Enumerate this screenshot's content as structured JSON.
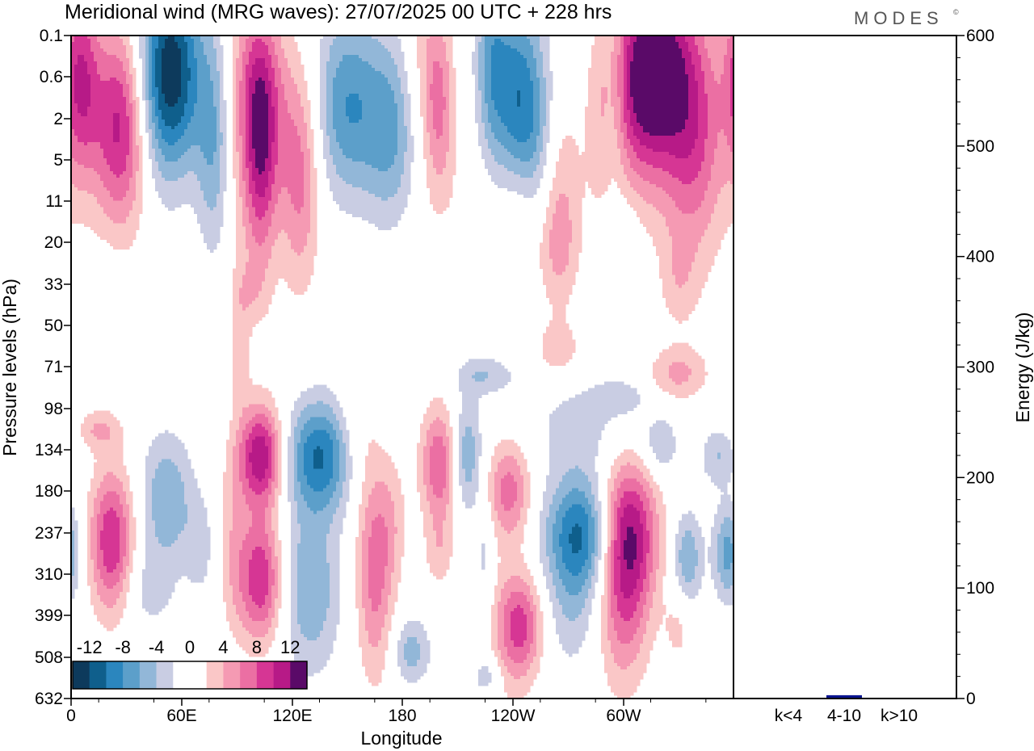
{
  "chart_data": [
    {
      "type": "heatmap",
      "title": "Meridional wind (MRG waves):  27/07/2025  00 UTC  + 228 hrs",
      "brand": "MODES",
      "brand_mark": "©",
      "xlabel": "Longitude",
      "ylabel": "Pressure levels (hPa)",
      "x_ticks": [
        "0",
        "60E",
        "120E",
        "180",
        "120W",
        "60W"
      ],
      "y_ticks": [
        "0.1",
        "0.6",
        "2",
        "5",
        "11",
        "20",
        "33",
        "50",
        "71",
        "98",
        "134",
        "180",
        "237",
        "310",
        "399",
        "508",
        "632"
      ],
      "colorbar": {
        "labels": [
          "-12",
          "-8",
          "-4",
          "0",
          "4",
          "8",
          "12"
        ],
        "levels": [
          -14,
          -12,
          -10,
          -8,
          -6,
          -4,
          -2,
          0,
          2,
          4,
          6,
          8,
          10,
          12,
          14
        ],
        "colors": [
          "#0d3a5c",
          "#0f5f8c",
          "#2b86be",
          "#5c9fca",
          "#92b7d8",
          "#c9cde3",
          "#ffffff",
          "#ffffff",
          "#fac7c7",
          "#f59ab3",
          "#eb6fa3",
          "#d63694",
          "#b71a87",
          "#5a0a68"
        ]
      },
      "blobs": [
        {
          "lon": 5,
          "lev": 0.6,
          "rx": 10,
          "ry": 16,
          "v": 9
        },
        {
          "lon": 28,
          "lev": 2.3,
          "rx": 16,
          "ry": 16,
          "v": 12
        },
        {
          "lon": 55,
          "lev": 0.5,
          "rx": 16,
          "ry": 18,
          "v": -13
        },
        {
          "lon": 40,
          "lev": 1.2,
          "rx": 14,
          "ry": 20,
          "v": -4
        },
        {
          "lon": 78,
          "lev": 3.8,
          "rx": 10,
          "ry": 24,
          "v": -7
        },
        {
          "lon": 103,
          "lev": 3.8,
          "rx": 8,
          "ry": 22,
          "v": 7
        },
        {
          "lon": 98,
          "lev": 0.8,
          "rx": 14,
          "ry": 16,
          "v": 6
        },
        {
          "lon": 125,
          "lev": 6.5,
          "rx": 10,
          "ry": 16,
          "v": 6
        },
        {
          "lon": 112,
          "lev": 1.5,
          "rx": 10,
          "ry": 14,
          "v": 3
        },
        {
          "lon": 148,
          "lev": 1.4,
          "rx": 16,
          "ry": 14,
          "v": -6
        },
        {
          "lon": 175,
          "lev": 3.5,
          "rx": 16,
          "ry": 14,
          "v": -7
        },
        {
          "lon": 160,
          "lev": 2.2,
          "rx": 20,
          "ry": 22,
          "v": -3
        },
        {
          "lon": 200,
          "lev": 1.2,
          "rx": 8,
          "ry": 12,
          "v": 6
        },
        {
          "lon": 190,
          "lev": 0.4,
          "rx": 10,
          "ry": 14,
          "v": 3
        },
        {
          "lon": 240,
          "lev": 1.0,
          "rx": 16,
          "ry": 24,
          "v": -8
        },
        {
          "lon": 250,
          "lev": 4.5,
          "rx": 14,
          "ry": 12,
          "v": -7
        },
        {
          "lon": 228,
          "lev": 0.3,
          "rx": 8,
          "ry": 14,
          "v": -4
        },
        {
          "lon": 245,
          "lev": 11,
          "rx": 12,
          "ry": 10,
          "v": 4
        },
        {
          "lon": 265,
          "lev": 8,
          "rx": 10,
          "ry": 10,
          "v": 3
        },
        {
          "lon": 290,
          "lev": 1.8,
          "rx": 10,
          "ry": 14,
          "v": 3
        },
        {
          "lon": 318,
          "lev": 0.35,
          "rx": 20,
          "ry": 16,
          "v": 12
        },
        {
          "lon": 308,
          "lev": 1.2,
          "rx": 14,
          "ry": 18,
          "v": 5
        },
        {
          "lon": 338,
          "lev": 3.0,
          "rx": 18,
          "ry": 28,
          "v": 8
        },
        {
          "lon": 295,
          "lev": 1.4,
          "rx": 6,
          "ry": 12,
          "v": -3
        },
        {
          "lon": 175,
          "lev": 9,
          "rx": 30,
          "ry": 10,
          "v": 2.5
        },
        {
          "lon": 250,
          "lev": 10,
          "rx": 30,
          "ry": 10,
          "v": 2.5
        },
        {
          "lon": 95,
          "lev": 10,
          "rx": 25,
          "ry": 14,
          "v": 2.5
        },
        {
          "lon": 265,
          "lev": 22,
          "rx": 10,
          "ry": 14,
          "v": 2.5
        },
        {
          "lon": 330,
          "lev": 32,
          "rx": 10,
          "ry": 16,
          "v": 2.5
        },
        {
          "lon": 95,
          "lev": 36,
          "rx": 10,
          "ry": 12,
          "v": 2.5
        },
        {
          "lon": 200,
          "lev": 26,
          "rx": 10,
          "ry": 10,
          "v": -2.5
        },
        {
          "lon": 300,
          "lev": 20,
          "rx": 8,
          "ry": 10,
          "v": -2.5
        },
        {
          "lon": 15,
          "lev": 30,
          "rx": 12,
          "ry": 8,
          "v": -2.5
        },
        {
          "lon": 265,
          "lev": 63,
          "rx": 14,
          "ry": 16,
          "v": 3
        },
        {
          "lon": 225,
          "lev": 76,
          "rx": 16,
          "ry": 12,
          "v": -4
        },
        {
          "lon": 330,
          "lev": 75,
          "rx": 16,
          "ry": 16,
          "v": 4.5
        },
        {
          "lon": 300,
          "lev": 90,
          "rx": 14,
          "ry": 12,
          "v": -3
        },
        {
          "lon": 92,
          "lev": 65,
          "rx": 5,
          "ry": 26,
          "v": 3
        },
        {
          "lon": 15,
          "lev": 115,
          "rx": 12,
          "ry": 18,
          "v": 4
        },
        {
          "lon": 22,
          "lev": 250,
          "rx": 12,
          "ry": 110,
          "v": 10
        },
        {
          "lon": 52,
          "lev": 190,
          "rx": 14,
          "ry": 80,
          "v": -6
        },
        {
          "lon": 42,
          "lev": 340,
          "rx": 14,
          "ry": 80,
          "v": -3
        },
        {
          "lon": 70,
          "lev": 260,
          "rx": 8,
          "ry": 80,
          "v": -3
        },
        {
          "lon": 103,
          "lev": 140,
          "rx": 12,
          "ry": 50,
          "v": 12
        },
        {
          "lon": 103,
          "lev": 320,
          "rx": 12,
          "ry": 120,
          "v": 10
        },
        {
          "lon": 88,
          "lev": 250,
          "rx": 8,
          "ry": 140,
          "v": 3
        },
        {
          "lon": 135,
          "lev": 140,
          "rx": 18,
          "ry": 55,
          "v": -10
        },
        {
          "lon": 130,
          "lev": 340,
          "rx": 16,
          "ry": 160,
          "v": -6
        },
        {
          "lon": 165,
          "lev": 300,
          "rx": 10,
          "ry": 180,
          "v": 7
        },
        {
          "lon": 155,
          "lev": 110,
          "rx": 10,
          "ry": 50,
          "v": 2.5
        },
        {
          "lon": 185,
          "lev": 490,
          "rx": 10,
          "ry": 90,
          "v": -5
        },
        {
          "lon": 175,
          "lev": 220,
          "rx": 8,
          "ry": 90,
          "v": 2.5
        },
        {
          "lon": 200,
          "lev": 150,
          "rx": 10,
          "ry": 60,
          "v": 8
        },
        {
          "lon": 200,
          "lev": 270,
          "rx": 8,
          "ry": 60,
          "v": 3
        },
        {
          "lon": 215,
          "lev": 140,
          "rx": 8,
          "ry": 55,
          "v": -6
        },
        {
          "lon": 225,
          "lev": 280,
          "rx": 5,
          "ry": 100,
          "v": -3
        },
        {
          "lon": 238,
          "lev": 180,
          "rx": 12,
          "ry": 60,
          "v": 7
        },
        {
          "lon": 245,
          "lev": 420,
          "rx": 12,
          "ry": 120,
          "v": 7
        },
        {
          "lon": 226,
          "lev": 560,
          "rx": 8,
          "ry": 60,
          "v": -4
        },
        {
          "lon": 238,
          "lev": 450,
          "rx": 14,
          "ry": 200,
          "v": 3
        },
        {
          "lon": 278,
          "lev": 240,
          "rx": 20,
          "ry": 90,
          "v": -11
        },
        {
          "lon": 272,
          "lev": 400,
          "rx": 16,
          "ry": 140,
          "v": -3
        },
        {
          "lon": 302,
          "lev": 240,
          "rx": 16,
          "ry": 110,
          "v": 13.5
        },
        {
          "lon": 300,
          "lev": 420,
          "rx": 14,
          "ry": 180,
          "v": 5
        },
        {
          "lon": 278,
          "lev": 110,
          "rx": 28,
          "ry": 40,
          "v": -3
        },
        {
          "lon": 320,
          "lev": 130,
          "rx": 10,
          "ry": 30,
          "v": -4
        },
        {
          "lon": 335,
          "lev": 280,
          "rx": 8,
          "ry": 80,
          "v": -6
        },
        {
          "lon": 357,
          "lev": 270,
          "rx": 8,
          "ry": 80,
          "v": -7
        },
        {
          "lon": 352,
          "lev": 140,
          "rx": 10,
          "ry": 30,
          "v": -4
        },
        {
          "lon": 330,
          "lev": 430,
          "rx": 8,
          "ry": 100,
          "v": 2.5
        }
      ],
      "energy_panel": {
        "categories": [
          "k<4",
          "4-10",
          "k>10"
        ],
        "values": [
          0,
          3,
          0
        ],
        "bar_colors": [
          "#0a1590",
          "#0a1590",
          "#0a1590"
        ],
        "ylabel": "Energy (J/kg)",
        "ylim": [
          0,
          600
        ],
        "y_ticks": [
          "0",
          "100",
          "200",
          "300",
          "400",
          "500",
          "600"
        ]
      }
    }
  ]
}
